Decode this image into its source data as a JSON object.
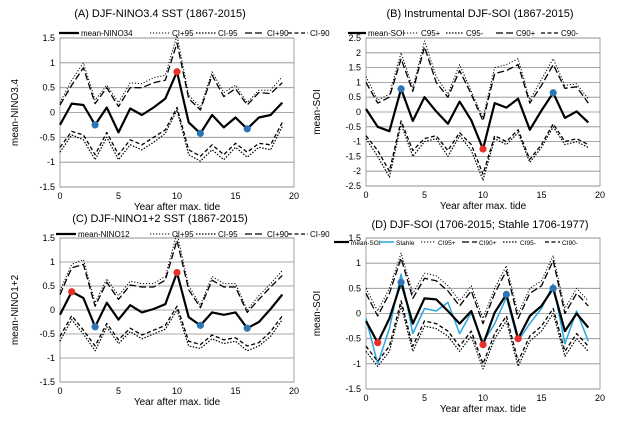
{
  "chart_data": [
    {
      "type": "line",
      "title": "(A) DJF-NINO3.4 SST (1867-2015)",
      "xlabel": "Year after max. tide",
      "ylabel": "mean-NINO3.4",
      "xlim": [
        0,
        20
      ],
      "ylim": [
        -1.5,
        1.5
      ],
      "x_ticks": [
        "0",
        "5",
        "10",
        "15",
        "20"
      ],
      "y_ticks": [
        "-1.5",
        "-1",
        "-0.5",
        "0",
        "0.5",
        "1",
        "1.5"
      ],
      "x": [
        0,
        1,
        2,
        3,
        4,
        5,
        6,
        7,
        8,
        9,
        10,
        11,
        12,
        13,
        14,
        15,
        16,
        17,
        18,
        19
      ],
      "series": [
        {
          "name": "mean-NINO34",
          "style": "thick",
          "values": [
            -0.25,
            0.18,
            0.15,
            -0.25,
            0.1,
            -0.4,
            0.08,
            -0.05,
            0.1,
            0.28,
            0.82,
            -0.2,
            -0.42,
            -0.05,
            -0.3,
            -0.1,
            -0.33,
            -0.1,
            -0.05,
            0.2
          ]
        },
        {
          "name": "CI+95",
          "style": "dot",
          "values": [
            0.2,
            0.65,
            1.0,
            0.25,
            0.55,
            0.2,
            0.6,
            0.58,
            0.7,
            0.75,
            1.55,
            0.35,
            0.1,
            0.82,
            0.4,
            0.55,
            0.2,
            0.45,
            0.45,
            0.72
          ]
        },
        {
          "name": "CI-95",
          "style": "dot2",
          "values": [
            -0.8,
            -0.45,
            -0.55,
            -0.95,
            -0.5,
            -0.95,
            -0.65,
            -0.75,
            -0.6,
            -0.42,
            0.05,
            -0.85,
            -0.98,
            -0.75,
            -0.95,
            -0.7,
            -0.9,
            -0.7,
            -0.75,
            -0.28
          ]
        },
        {
          "name": "CI+90",
          "style": "longdash",
          "values": [
            0.15,
            0.55,
            0.9,
            0.18,
            0.5,
            0.12,
            0.5,
            0.5,
            0.6,
            0.65,
            1.4,
            0.28,
            0.05,
            0.75,
            0.32,
            0.48,
            0.15,
            0.4,
            0.38,
            0.6
          ]
        },
        {
          "name": "CI-90",
          "style": "dash",
          "values": [
            -0.7,
            -0.38,
            -0.45,
            -0.85,
            -0.4,
            -0.85,
            -0.55,
            -0.65,
            -0.5,
            -0.35,
            0.1,
            -0.75,
            -0.88,
            -0.65,
            -0.85,
            -0.62,
            -0.8,
            -0.62,
            -0.65,
            -0.2
          ]
        }
      ],
      "markers": [
        {
          "x": 3,
          "y": -0.25,
          "color": "#2e75b6"
        },
        {
          "x": 10,
          "y": 0.82,
          "color": "#e8302a"
        },
        {
          "x": 12,
          "y": -0.42,
          "color": "#2e75b6"
        },
        {
          "x": 16,
          "y": -0.33,
          "color": "#2e75b6"
        }
      ]
    },
    {
      "type": "line",
      "title": "(B) Instrumental  DJF-SOI (1867-2015)",
      "xlabel": "Year after max. tide",
      "ylabel": "mean-SOI",
      "xlim": [
        0,
        20
      ],
      "ylim": [
        -2.5,
        2.5
      ],
      "x_ticks": [
        "0",
        "5",
        "10",
        "15",
        "20"
      ],
      "y_ticks": [
        "-2.5",
        "-2",
        "-1.5",
        "-1",
        "-0.5",
        "0",
        "0.5",
        "1",
        "1.5",
        "2",
        "2.5"
      ],
      "x": [
        0,
        1,
        2,
        3,
        4,
        5,
        6,
        7,
        8,
        9,
        10,
        11,
        12,
        13,
        14,
        15,
        16,
        17,
        18,
        19
      ],
      "series": [
        {
          "name": "mean-SOI",
          "style": "thick",
          "values": [
            0.1,
            -0.5,
            -0.65,
            0.78,
            -0.3,
            0.5,
            0.02,
            -0.4,
            0.35,
            -0.28,
            -1.25,
            0.3,
            0.15,
            0.45,
            -0.6,
            0.05,
            0.65,
            -0.2,
            0.02,
            -0.35
          ]
        },
        {
          "name": "C95+",
          "style": "dot",
          "values": [
            1.2,
            0.4,
            0.6,
            2.0,
            0.8,
            2.4,
            1.2,
            0.6,
            1.6,
            0.7,
            -0.2,
            1.5,
            1.6,
            1.8,
            0.4,
            1.1,
            1.8,
            0.9,
            0.95,
            0.45
          ]
        },
        {
          "name": "C95-",
          "style": "dot2",
          "values": [
            -0.9,
            -1.5,
            -2.2,
            -0.4,
            -1.5,
            -1.0,
            -0.9,
            -1.5,
            -0.8,
            -1.3,
            -2.3,
            -0.9,
            -1.1,
            -0.7,
            -1.7,
            -1.2,
            -0.5,
            -1.1,
            -1.0,
            -1.2
          ]
        },
        {
          "name": "C90+",
          "style": "longdash",
          "values": [
            1.0,
            0.3,
            0.5,
            1.8,
            0.7,
            2.2,
            1.0,
            0.5,
            1.4,
            0.6,
            -0.3,
            1.3,
            1.4,
            1.6,
            0.3,
            0.9,
            1.6,
            0.8,
            0.85,
            0.3
          ]
        },
        {
          "name": "C90-",
          "style": "dash",
          "values": [
            -0.8,
            -1.3,
            -2.0,
            -0.3,
            -1.3,
            -0.9,
            -0.8,
            -1.3,
            -0.7,
            -1.1,
            -2.1,
            -0.8,
            -1.0,
            -0.6,
            -1.6,
            -1.1,
            -0.4,
            -1.0,
            -0.9,
            -1.1
          ]
        }
      ],
      "markers": [
        {
          "x": 3,
          "y": 0.78,
          "color": "#2e75b6"
        },
        {
          "x": 10,
          "y": -1.25,
          "color": "#e8302a"
        },
        {
          "x": 16,
          "y": 0.65,
          "color": "#2e75b6"
        }
      ]
    },
    {
      "type": "line",
      "title": "(C) DJF-NINO1+2 SST (1867-2015)",
      "xlabel": "Year after max. tide",
      "ylabel": "mean-NINO1+2",
      "xlim": [
        0,
        20
      ],
      "ylim": [
        -1.5,
        1.5
      ],
      "x_ticks": [
        "0",
        "5",
        "10",
        "15",
        "20"
      ],
      "y_ticks": [
        "-1.5",
        "-1",
        "-0.5",
        "0",
        "0.5",
        "1",
        "1.5"
      ],
      "x": [
        0,
        1,
        2,
        3,
        4,
        5,
        6,
        7,
        8,
        9,
        10,
        11,
        12,
        13,
        14,
        15,
        16,
        17,
        18,
        19
      ],
      "series": [
        {
          "name": "mean-NINO12",
          "style": "thick",
          "values": [
            -0.1,
            0.38,
            0.25,
            -0.35,
            0.15,
            -0.2,
            0.1,
            -0.05,
            0.02,
            0.12,
            0.78,
            -0.15,
            -0.32,
            -0.05,
            -0.1,
            -0.05,
            -0.38,
            -0.25,
            0.02,
            0.32
          ]
        },
        {
          "name": "CI+95",
          "style": "dot",
          "values": [
            0.4,
            0.95,
            1.05,
            0.15,
            0.65,
            0.3,
            0.6,
            0.55,
            0.55,
            0.7,
            1.6,
            0.5,
            0.1,
            0.7,
            0.55,
            0.55,
            0.0,
            0.3,
            0.55,
            0.82
          ]
        },
        {
          "name": "CI-95",
          "style": "dot2",
          "values": [
            -0.65,
            -0.2,
            -0.5,
            -0.85,
            -0.35,
            -0.7,
            -0.45,
            -0.6,
            -0.5,
            -0.4,
            0.0,
            -0.75,
            -0.8,
            -0.6,
            -0.7,
            -0.65,
            -0.85,
            -0.75,
            -0.55,
            -0.2
          ]
        },
        {
          "name": "CI+90",
          "style": "longdash",
          "values": [
            0.32,
            0.88,
            0.95,
            0.08,
            0.58,
            0.22,
            0.52,
            0.48,
            0.48,
            0.62,
            1.45,
            0.42,
            0.05,
            0.62,
            0.48,
            0.48,
            -0.05,
            0.22,
            0.48,
            0.72
          ]
        },
        {
          "name": "CI-90",
          "style": "dash",
          "values": [
            -0.55,
            -0.12,
            -0.42,
            -0.75,
            -0.28,
            -0.62,
            -0.38,
            -0.52,
            -0.42,
            -0.32,
            0.08,
            -0.65,
            -0.72,
            -0.52,
            -0.62,
            -0.58,
            -0.75,
            -0.68,
            -0.45,
            -0.12
          ]
        }
      ],
      "markers": [
        {
          "x": 1,
          "y": 0.38,
          "color": "#e8302a"
        },
        {
          "x": 3,
          "y": -0.35,
          "color": "#2e75b6"
        },
        {
          "x": 10,
          "y": 0.78,
          "color": "#e8302a"
        },
        {
          "x": 12,
          "y": -0.32,
          "color": "#2e75b6"
        },
        {
          "x": 16,
          "y": -0.38,
          "color": "#2e75b6"
        }
      ]
    },
    {
      "type": "line",
      "title": "(D) DJF-SOI (1706-2015; Stahle 1706-1977)",
      "xlabel": "Year after max. tide",
      "ylabel": "mean-SOI",
      "xlim": [
        0,
        20
      ],
      "ylim": [
        -1.5,
        1.5
      ],
      "x_ticks": [
        "0",
        "5",
        "10",
        "15",
        "20"
      ],
      "y_ticks": [
        "-1.5",
        "-1",
        "-0.5",
        "0",
        "0.5",
        "1",
        "1.5"
      ],
      "x": [
        0,
        1,
        2,
        3,
        4,
        5,
        6,
        7,
        8,
        9,
        10,
        11,
        12,
        13,
        14,
        15,
        16,
        17,
        18,
        19
      ],
      "series": [
        {
          "name": "mean-SOI",
          "style": "thick",
          "values": [
            -0.15,
            -0.58,
            -0.1,
            0.62,
            -0.2,
            0.3,
            0.28,
            0.05,
            -0.2,
            0.05,
            -0.62,
            0.02,
            0.38,
            -0.5,
            -0.05,
            0.15,
            0.5,
            -0.35,
            0.0,
            -0.28
          ]
        },
        {
          "name": "Stahle",
          "style": "blue",
          "color": "#29a8e0",
          "values": [
            -0.1,
            -1.0,
            -0.3,
            0.78,
            -0.4,
            0.1,
            0.05,
            0.22,
            -0.4,
            0.02,
            -0.58,
            -0.2,
            0.32,
            -0.55,
            -0.2,
            0.1,
            0.58,
            -0.6,
            0.05,
            -0.55
          ]
        },
        {
          "name": "CI95+",
          "style": "dot",
          "values": [
            0.5,
            0.05,
            0.5,
            1.2,
            0.4,
            0.8,
            0.75,
            0.55,
            0.25,
            0.55,
            -0.1,
            0.5,
            0.95,
            0.0,
            0.5,
            0.65,
            1.15,
            0.1,
            0.5,
            0.25
          ]
        },
        {
          "name": "CI90+",
          "style": "longdash",
          "values": [
            0.4,
            -0.05,
            0.4,
            1.1,
            0.3,
            0.7,
            0.65,
            0.45,
            0.15,
            0.45,
            -0.2,
            0.4,
            0.85,
            -0.1,
            0.4,
            0.55,
            1.05,
            0.0,
            0.4,
            0.15
          ]
        },
        {
          "name": "CI95-",
          "style": "dot2",
          "values": [
            -0.75,
            -1.05,
            -0.75,
            0.15,
            -0.75,
            -0.25,
            -0.3,
            -0.45,
            -0.75,
            -0.45,
            -1.1,
            -0.5,
            -0.15,
            -1.05,
            -0.55,
            -0.35,
            0.0,
            -0.85,
            -0.5,
            -0.75
          ]
        },
        {
          "name": "CI90-",
          "style": "dash",
          "values": [
            -0.65,
            -0.95,
            -0.65,
            0.25,
            -0.65,
            -0.15,
            -0.2,
            -0.35,
            -0.65,
            -0.35,
            -1.0,
            -0.4,
            -0.05,
            -0.95,
            -0.45,
            -0.25,
            0.1,
            -0.75,
            -0.4,
            -0.65
          ]
        }
      ],
      "markers": [
        {
          "x": 1,
          "y": -0.58,
          "color": "#e8302a"
        },
        {
          "x": 3,
          "y": 0.62,
          "color": "#2e75b6"
        },
        {
          "x": 10,
          "y": -0.62,
          "color": "#e8302a"
        },
        {
          "x": 12,
          "y": 0.38,
          "color": "#2e75b6"
        },
        {
          "x": 13,
          "y": -0.5,
          "color": "#e8302a"
        },
        {
          "x": 16,
          "y": 0.5,
          "color": "#2e75b6"
        }
      ]
    }
  ]
}
